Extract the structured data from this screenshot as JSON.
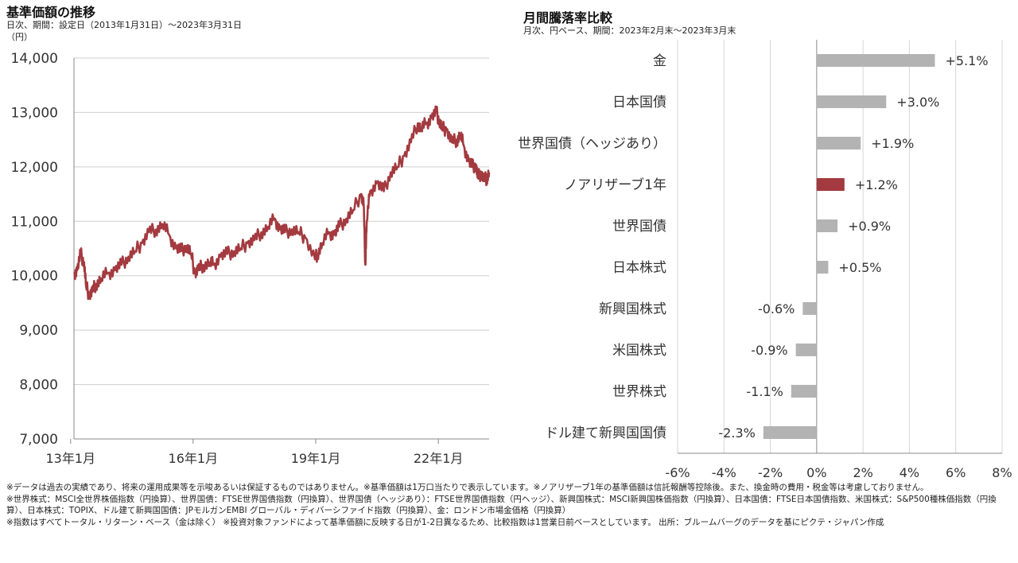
{
  "left": {
    "title": "基準価額の推移",
    "subtitle": "日次、期間：設定日（2013年1月31日）～2023年3月31日",
    "unit": "（円）"
  },
  "right": {
    "title": "月間騰落率比較",
    "subtitle": "月次、円ベース、期間：2023年2月末～2023年3月末"
  },
  "chart_data": [
    {
      "type": "line",
      "title": "基準価額の推移",
      "ylabel": "（円）",
      "ylim": [
        7000,
        14000
      ],
      "yticks": [
        7000,
        8000,
        9000,
        10000,
        11000,
        12000,
        13000,
        14000
      ],
      "ytick_labels": [
        "7,000",
        "8,000",
        "9,000",
        "10,000",
        "11,000",
        "12,000",
        "13,000",
        "14,000"
      ],
      "xlim": [
        "2013-01-31",
        "2023-03-31"
      ],
      "xticks": [
        "2013-01",
        "2016-01",
        "2019-01",
        "2022-01"
      ],
      "xtick_labels": [
        "13年1月",
        "16年1月",
        "19年1月",
        "22年1月"
      ],
      "grid": "horizontal",
      "color": "#a33a3f",
      "series": [
        {
          "x": [
            "2013-01-31",
            "2013-03-01",
            "2013-04-01",
            "2013-05-01",
            "2013-05-20",
            "2013-06-15",
            "2013-07-15",
            "2013-08-15",
            "2013-10-01",
            "2013-12-01",
            "2014-02-01",
            "2014-04-01",
            "2014-06-01",
            "2014-08-01",
            "2014-10-01",
            "2014-12-01",
            "2015-02-01",
            "2015-04-01",
            "2015-06-01",
            "2015-08-01",
            "2015-09-15",
            "2015-11-01",
            "2015-12-15",
            "2016-01-15",
            "2016-02-15",
            "2016-04-01",
            "2016-06-01",
            "2016-07-01",
            "2016-09-01",
            "2016-11-01",
            "2017-01-01",
            "2017-03-01",
            "2017-05-01",
            "2017-07-01",
            "2017-09-01",
            "2017-11-01",
            "2018-01-01",
            "2018-02-15",
            "2018-04-01",
            "2018-06-01",
            "2018-08-01",
            "2018-10-01",
            "2018-12-25",
            "2019-01-15",
            "2019-03-01",
            "2019-05-01",
            "2019-06-15",
            "2019-08-01",
            "2019-10-01",
            "2019-12-01",
            "2020-02-10",
            "2020-03-05",
            "2020-03-19",
            "2020-04-01",
            "2020-05-01",
            "2020-07-01",
            "2020-09-01",
            "2020-11-01",
            "2021-01-01",
            "2021-03-01",
            "2021-05-01",
            "2021-07-01",
            "2021-08-01",
            "2021-09-15",
            "2021-11-01",
            "2021-12-15",
            "2022-01-10",
            "2022-02-01",
            "2022-03-15",
            "2022-05-01",
            "2022-06-15",
            "2022-07-15",
            "2022-08-15",
            "2022-09-30",
            "2022-10-31",
            "2022-12-01",
            "2022-12-20",
            "2023-01-20",
            "2023-02-15",
            "2023-03-10",
            "2023-03-31"
          ],
          "values": [
            10050,
            10100,
            10400,
            10250,
            9800,
            9650,
            9700,
            9850,
            9950,
            10050,
            10100,
            10200,
            10350,
            10450,
            10600,
            10800,
            10850,
            10950,
            10750,
            10500,
            10450,
            10550,
            10400,
            10050,
            10100,
            10200,
            10250,
            10200,
            10350,
            10400,
            10450,
            10500,
            10600,
            10650,
            10800,
            10900,
            11050,
            10850,
            10800,
            10850,
            10800,
            10700,
            10300,
            10400,
            10600,
            10800,
            10750,
            10900,
            11050,
            11200,
            11500,
            11300,
            10200,
            11000,
            11550,
            11700,
            11550,
            11900,
            12000,
            12200,
            12450,
            12800,
            12700,
            12800,
            12900,
            13000,
            12850,
            12700,
            12700,
            12450,
            12500,
            12600,
            12400,
            12100,
            12000,
            12050,
            11800,
            11900,
            11750,
            11800,
            11900
          ]
        }
      ]
    },
    {
      "type": "bar",
      "orientation": "horizontal",
      "title": "月間騰落率比較",
      "xlim": [
        -6,
        8
      ],
      "xticks": [
        -6,
        -4,
        -2,
        0,
        2,
        4,
        6,
        8
      ],
      "xtick_labels": [
        "-6%",
        "-4%",
        "-2%",
        "0%",
        "2%",
        "4%",
        "6%",
        "8%"
      ],
      "grid": "vertical",
      "categories": [
        "金",
        "日本国債",
        "世界国債（ヘッジあり）",
        "ノアリザーブ1年",
        "世界国債",
        "日本株式",
        "新興国株式",
        "米国株式",
        "世界株式",
        "ドル建て新興国国債"
      ],
      "values": [
        5.1,
        3.0,
        1.9,
        1.2,
        0.9,
        0.5,
        -0.6,
        -0.9,
        -1.1,
        -2.3
      ],
      "value_labels": [
        "+5.1%",
        "+3.0%",
        "+1.9%",
        "+1.2%",
        "+0.9%",
        "+0.5%",
        "-0.6%",
        "-0.9%",
        "-1.1%",
        "-2.3%"
      ],
      "highlight": "ノアリザーブ1年",
      "colors": {
        "default": "#b3b3b3",
        "highlight": "#a33a3f"
      }
    }
  ],
  "notes": [
    "※データは過去の実績であり、将来の運用成果等を示唆あるいは保証するものではありません。※基準価額は1万口当たりで表示しています。※ノアリザーブ1年の基準価額は信託報酬等控除後。また、換金時の費用・税金等は考慮しておりません。",
    "※世界株式：MSCI全世界株価指数（円換算）、世界国債：FTSE世界国債指数（円換算）、世界国債（ヘッジあり）：FTSE世界国債指数（円ヘッジ）、新興国株式：MSCI新興国株価指数（円換算）、日本国債：FTSE日本国債指数、米国株式：S&P500種株価指数（円換算）、日本株式：TOPIX、ドル建て新興国国債：JPモルガンEMBI グローバル・ディバーシファイド指数（円換算）、金：ロンドン市場金価格（円換算）",
    "※指数はすべてトータル・リターン・ベース（金は除く） ※投資対象ファンドによって基準価額に反映する日が1-2日異なるため、比較指数は1営業日前ベースとしています。 出所：ブルームバーグのデータを基にピクテ・ジャパン作成"
  ]
}
